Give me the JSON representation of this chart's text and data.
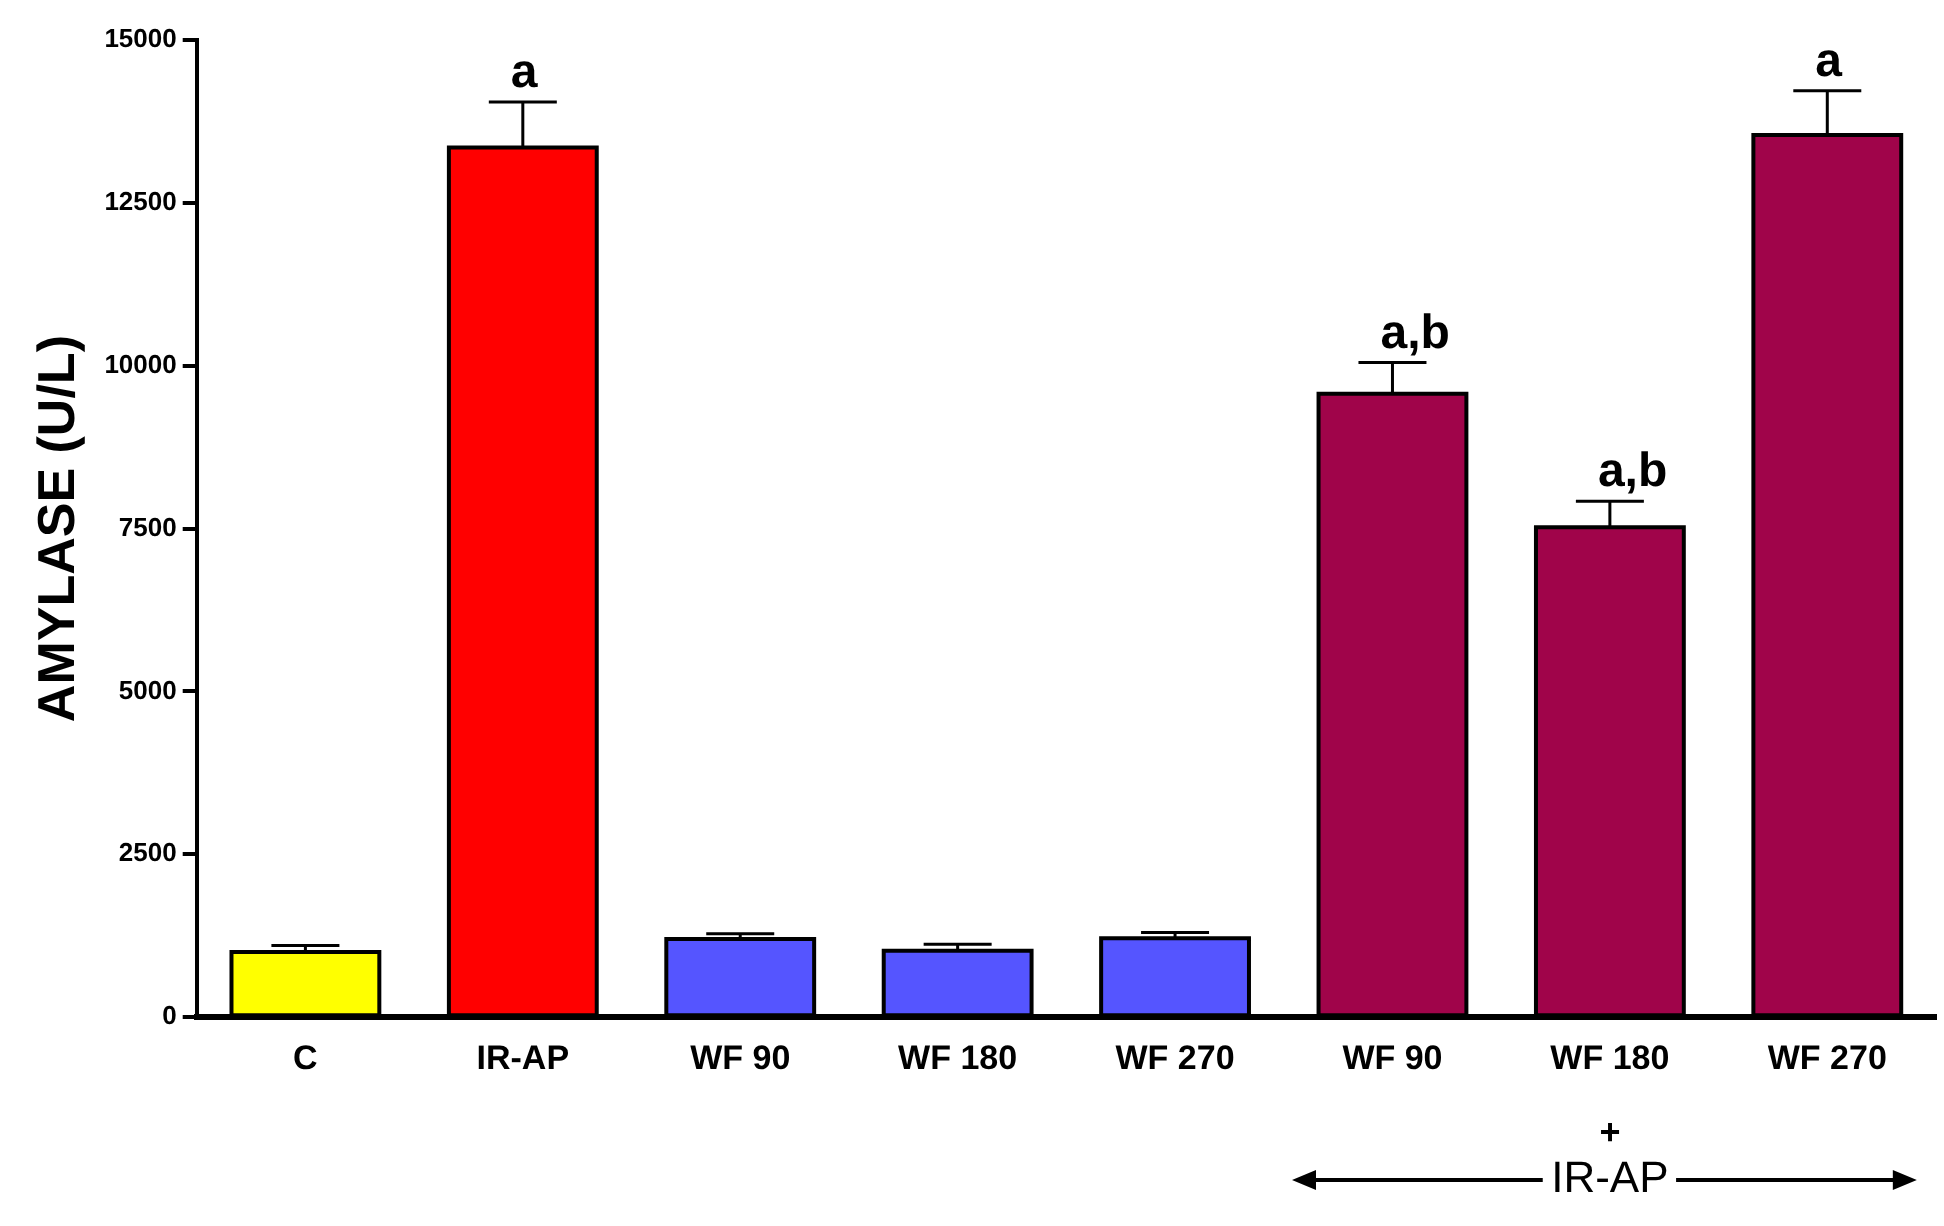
{
  "chart_data": {
    "type": "bar",
    "ylabel": "AMYLASE (U/L)",
    "categories": [
      "C",
      "IR-AP",
      "WF 90",
      "WF 180",
      "WF 270",
      "WF 90",
      "WF 180",
      "WF 270"
    ],
    "values": [
      1000,
      13350,
      1200,
      1020,
      1210,
      9570,
      7520,
      13540
    ],
    "errors": [
      100,
      700,
      80,
      100,
      90,
      480,
      400,
      680
    ],
    "value_labels": [
      null,
      "a",
      null,
      null,
      null,
      "a,b",
      "a,b",
      "a"
    ],
    "colors": [
      "#ffff00",
      "#ff0000",
      "#5555ff",
      "#5555ff",
      "#5555ff",
      "#a0044a",
      "#a0044a",
      "#a0044a"
    ],
    "ylim": [
      0,
      15000
    ],
    "yticks": [
      0,
      2500,
      5000,
      7500,
      10000,
      12500,
      15000
    ],
    "annotations": [
      "+",
      "IR-AP"
    ]
  }
}
